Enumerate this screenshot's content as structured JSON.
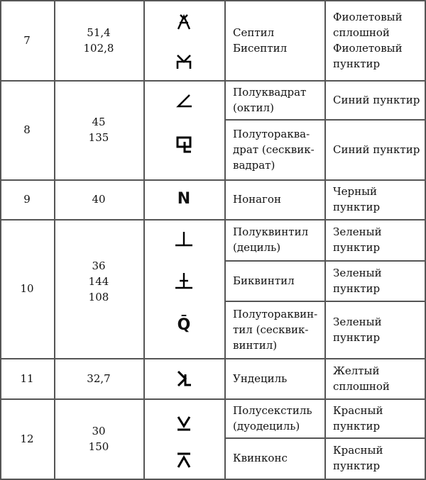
{
  "rows": [
    {
      "num": "7",
      "degrees": [
        "51,4",
        "102,8"
      ],
      "aspects": [
        {
          "symbol": "septile-glyph",
          "name": [
            "Септил",
            "Бисептил"
          ],
          "line": [
            "Фиолетовый сплошной",
            "Фиолетовый пунктир"
          ]
        }
      ],
      "glyph2": "biseptile-glyph"
    },
    {
      "num": "8",
      "degrees": [
        "45",
        "135"
      ],
      "aspects": [
        {
          "symbol": "semisquare-glyph",
          "name": [
            "Полуквадрат",
            "(октил)"
          ],
          "line": "Синий пунктир"
        },
        {
          "symbol": "sesquiquadrate-glyph",
          "name": [
            "Полутораква-",
            "драт (сесквик-",
            "вадрат)"
          ],
          "line": "Синий пунктир"
        }
      ]
    },
    {
      "num": "9",
      "degrees": [
        "40"
      ],
      "aspects": [
        {
          "symbol": "N",
          "name": "Нонагон",
          "line": [
            "Черный",
            "пунктир"
          ]
        }
      ]
    },
    {
      "num": "10",
      "degrees": [
        "36",
        "144",
        "108"
      ],
      "aspects": [
        {
          "symbol": "⊥",
          "name": [
            "Полуквинтил",
            "(дециль)"
          ],
          "line": [
            "Зеленый",
            "пунктир"
          ]
        },
        {
          "symbol": "biquintile-glyph",
          "name": "Биквинтил",
          "line": [
            "Зеленый",
            "пунктир"
          ]
        },
        {
          "symbol": "Q̄",
          "name": [
            "Полутораквин-",
            "тил (сесквик-",
            "винтил)"
          ],
          "line": [
            "Зеленый",
            "пунктир"
          ]
        }
      ]
    },
    {
      "num": "11",
      "degrees": [
        "32,7"
      ],
      "aspects": [
        {
          "symbol": "undecile-glyph",
          "name": "Ундециль",
          "line": [
            "Желтый",
            "сплошной"
          ]
        }
      ]
    },
    {
      "num": "12",
      "degrees": [
        "30",
        "150"
      ],
      "aspects": [
        {
          "symbol": "⊻",
          "name": [
            "Полусекстиль",
            "(дуодециль)"
          ],
          "line": [
            "Красный",
            "пунктир"
          ]
        },
        {
          "symbol": "⊼",
          "name": "Квинконс",
          "line": [
            "Красный",
            "пунктир"
          ]
        }
      ]
    }
  ]
}
